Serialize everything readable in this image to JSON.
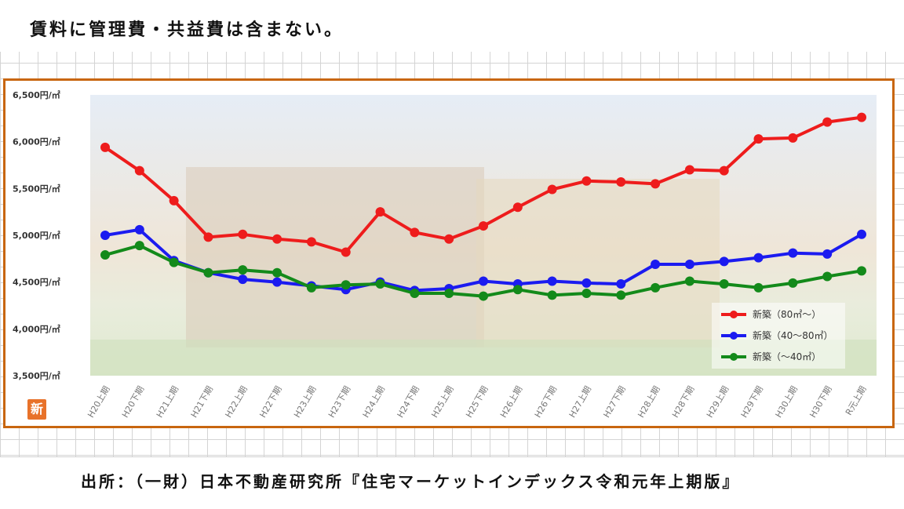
{
  "note": "賃料に管理費・共益費は含まない。",
  "source": "出所：（一財）日本不動産研究所『住宅マーケットインデックス令和元年上期版』",
  "logo_text": "新",
  "chart_data": {
    "type": "line",
    "title": "",
    "xlabel": "",
    "ylabel": "",
    "categories": [
      "H20上期",
      "H20下期",
      "H21上期",
      "H21下期",
      "H22上期",
      "H22下期",
      "H23上期",
      "H23下期",
      "H24上期",
      "H24下期",
      "H25上期",
      "H25下期",
      "H26上期",
      "H26下期",
      "H27上期",
      "H27下期",
      "H28上期",
      "H28下期",
      "H29上期",
      "H29下期",
      "H30上期",
      "H30下期",
      "R元上期"
    ],
    "ylim": [
      3500,
      6500
    ],
    "yticks": [
      3500,
      4000,
      4500,
      5000,
      5500,
      6000,
      6500
    ],
    "ytick_labels": [
      "3,500円/㎡",
      "4,000円/㎡",
      "4,500円/㎡",
      "5,000円/㎡",
      "5,500円/㎡",
      "6,000円/㎡",
      "6,500円/㎡"
    ],
    "grid": false,
    "legend_position": "bottom-right",
    "series": [
      {
        "name": "新築（80㎡～）",
        "color": "#ee1c1c",
        "values": [
          5940,
          5690,
          5370,
          4980,
          5010,
          4960,
          4930,
          4820,
          5250,
          5030,
          4960,
          5100,
          5300,
          5490,
          5580,
          5570,
          5550,
          5700,
          5690,
          6030,
          6040,
          6210,
          6260
        ]
      },
      {
        "name": "新築（40～80㎡）",
        "color": "#1b1bf0",
        "values": [
          5000,
          5060,
          4730,
          4600,
          4530,
          4500,
          4460,
          4420,
          4500,
          4410,
          4430,
          4510,
          4480,
          4510,
          4490,
          4480,
          4690,
          4690,
          4720,
          4760,
          4810,
          4800,
          5010
        ]
      },
      {
        "name": "新築（～40㎡）",
        "color": "#138a1a",
        "values": [
          4790,
          4890,
          4710,
          4600,
          4630,
          4600,
          4440,
          4470,
          4480,
          4380,
          4380,
          4350,
          4420,
          4360,
          4380,
          4360,
          4440,
          4510,
          4480,
          4440,
          4490,
          4560,
          4620
        ]
      }
    ]
  }
}
